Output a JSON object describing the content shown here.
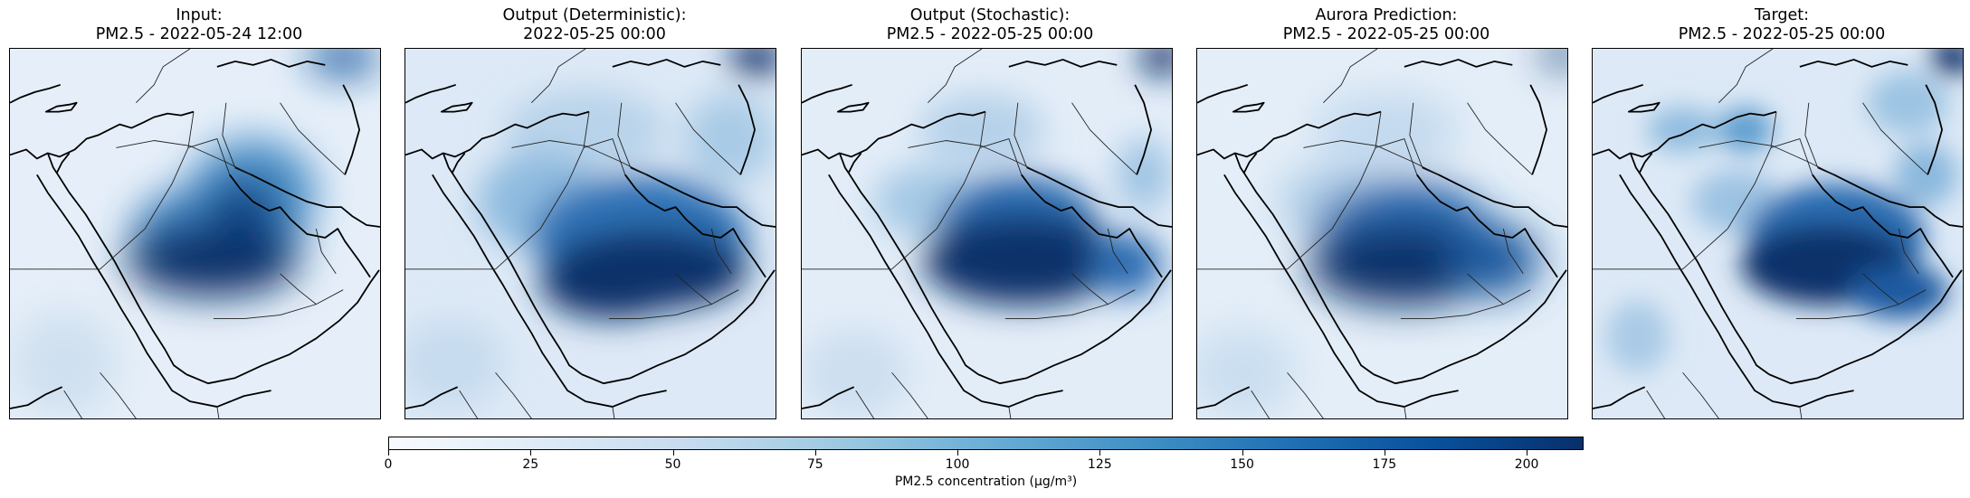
{
  "panels": [
    {
      "title_line1": "Input:",
      "title_line2": "PM2.5 - 2022-05-24 12:00"
    },
    {
      "title_line1": "Output (Deterministic):",
      "title_line2": "2022-05-25 00:00"
    },
    {
      "title_line1": "Output (Stochastic):",
      "title_line2": "PM2.5 - 2022-05-25 00:00"
    },
    {
      "title_line1": "Aurora Prediction:",
      "title_line2": "PM2.5 - 2022-05-25 00:00"
    },
    {
      "title_line1": "Target:",
      "title_line2": "PM2.5 - 2022-05-25 00:00"
    }
  ],
  "colorbar": {
    "label": "PM2.5 concentration (µg/m³)",
    "min": 0,
    "max": 210,
    "ticks": [
      "0",
      "25",
      "50",
      "75",
      "100",
      "125",
      "150",
      "175",
      "200"
    ],
    "colormap": "Blues",
    "colors": [
      "#f7fbff",
      "#deebf7",
      "#c6dbef",
      "#9ecae1",
      "#6baed6",
      "#4292c6",
      "#2171b5",
      "#08519c",
      "#08306b"
    ]
  }
}
